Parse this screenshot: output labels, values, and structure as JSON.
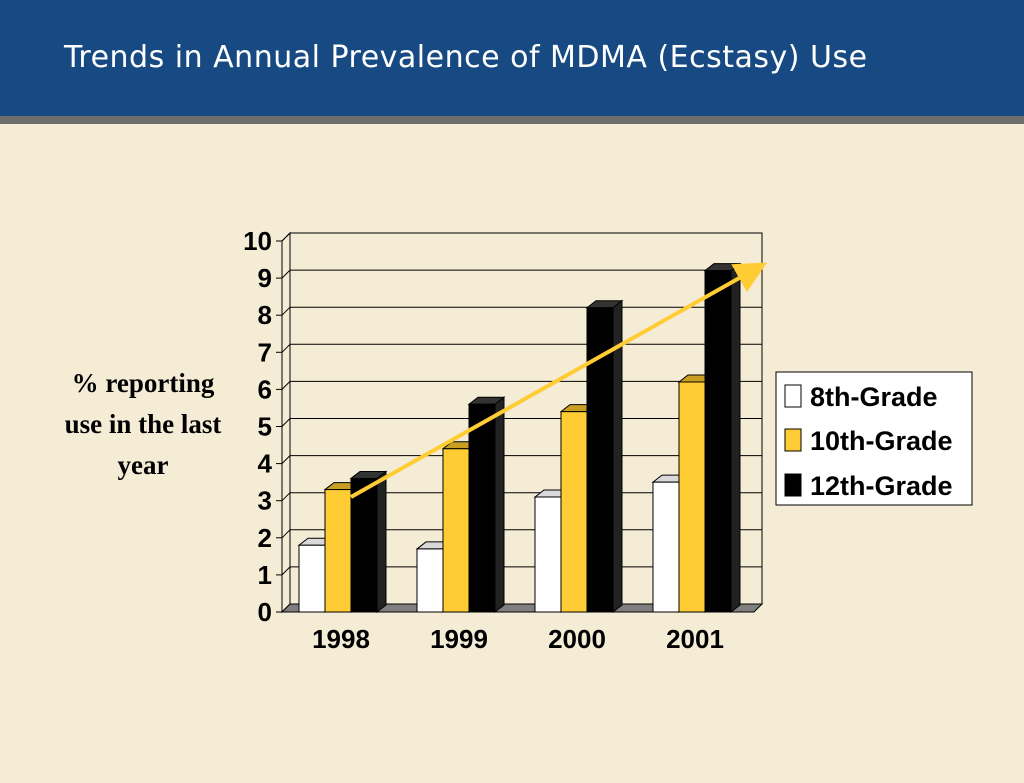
{
  "slide": {
    "title": "Trends in Annual Prevalence of MDMA (Ecstasy) Use"
  },
  "colors": {
    "header": "#174a82",
    "background": "#f5ecd6",
    "trend_arrow": "#ffcc33"
  },
  "chart_data": {
    "type": "bar",
    "style": "3d-clustered-column",
    "categories": [
      "1998",
      "1999",
      "2000",
      "2001"
    ],
    "series": [
      {
        "name": "8th-Grade",
        "color": "#ffffff",
        "values": [
          1.8,
          1.7,
          3.1,
          3.5
        ]
      },
      {
        "name": "10th-Grade",
        "color": "#ffcc33",
        "values": [
          3.3,
          4.4,
          5.4,
          6.2
        ]
      },
      {
        "name": "12th-Grade",
        "color": "#000000",
        "values": [
          3.6,
          5.6,
          8.2,
          9.2
        ]
      }
    ],
    "ylabel_lines": [
      "% reporting",
      "use in the last",
      "year"
    ],
    "xlabel": "",
    "ylim": [
      0,
      10
    ],
    "yticks": [
      0,
      1,
      2,
      3,
      4,
      5,
      6,
      7,
      8,
      9,
      10
    ],
    "grid": true,
    "legend": "right",
    "trend_arrow": {
      "from": [
        "1998",
        3.1
      ],
      "to": [
        "2001",
        9.1
      ]
    }
  }
}
